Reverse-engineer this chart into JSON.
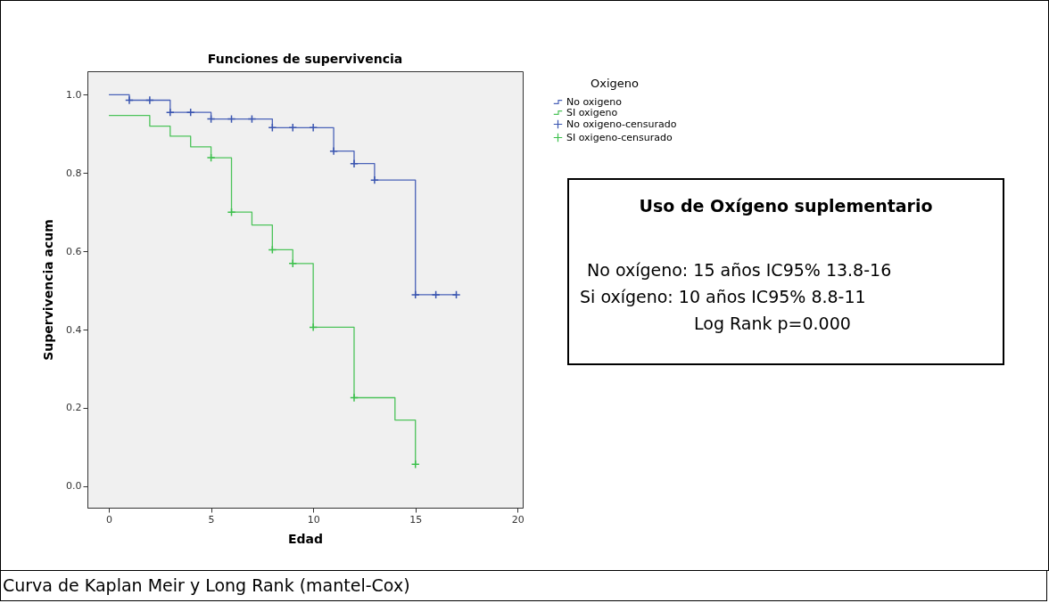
{
  "chart_data": {
    "type": "step",
    "title": "Funciones de supervivencia",
    "xlabel": "Edad",
    "ylabel": "Supervivencia acum",
    "legend_title": "Oxigeno",
    "series": [
      {
        "name": "No oxigeno",
        "color": "#4a62b8",
        "x": [
          0,
          1,
          3,
          5,
          8,
          11,
          12,
          13,
          15,
          17
        ],
        "values": [
          1.0,
          0.986,
          0.955,
          0.938,
          0.916,
          0.856,
          0.824,
          0.782,
          0.489,
          0.489
        ]
      },
      {
        "name": "SI oxigeno",
        "color": "#4cc35a",
        "x": [
          0,
          2,
          3,
          4,
          5,
          6,
          7,
          8,
          9,
          10,
          12,
          14,
          15
        ],
        "values": [
          0.947,
          0.92,
          0.894,
          0.867,
          0.839,
          0.7,
          0.667,
          0.604,
          0.569,
          0.406,
          0.226,
          0.169,
          0.056
        ]
      },
      {
        "name": "No oxigeno-censurado",
        "type": "scatter",
        "marker": "cross",
        "color": "#3a55b0",
        "x": [
          1,
          2,
          3,
          4,
          5,
          6,
          7,
          8,
          9,
          10,
          11,
          12,
          13,
          15,
          16,
          17
        ],
        "values": [
          0.986,
          0.986,
          0.955,
          0.955,
          0.938,
          0.938,
          0.938,
          0.916,
          0.916,
          0.916,
          0.856,
          0.824,
          0.782,
          0.489,
          0.489,
          0.489
        ]
      },
      {
        "name": "SI oxigeno-censurado",
        "type": "scatter",
        "marker": "cross",
        "color": "#3cc04c",
        "x": [
          5,
          6,
          8,
          9,
          10,
          12,
          15
        ],
        "values": [
          0.839,
          0.7,
          0.604,
          0.569,
          0.406,
          0.226,
          0.056
        ]
      }
    ],
    "xlim": [
      -1.05,
      20.25
    ],
    "xticks": [
      0,
      5,
      10,
      15,
      20
    ],
    "ylim": [
      -0.055,
      1.06
    ],
    "yticks": [
      {
        "value": 0,
        "label": "0.0"
      },
      {
        "value": 0.2,
        "label": "0.2"
      },
      {
        "value": 0.4,
        "label": "0.4"
      },
      {
        "value": 0.6,
        "label": "0.6"
      },
      {
        "value": 0.8,
        "label": "0.8"
      },
      {
        "value": 1,
        "label": "1.0"
      }
    ],
    "grid": false,
    "legend": "top right",
    "annotations": [
      "Uso de Oxígeno suplementario",
      "No oxígeno: 15 años IC95% 13.8-16",
      "Si oxígeno: 10 años IC95% 8.8-11",
      "Log Rank p=0.000",
      "Curva de Kaplan Meir y Long Rank (mantel-Cox)"
    ]
  }
}
